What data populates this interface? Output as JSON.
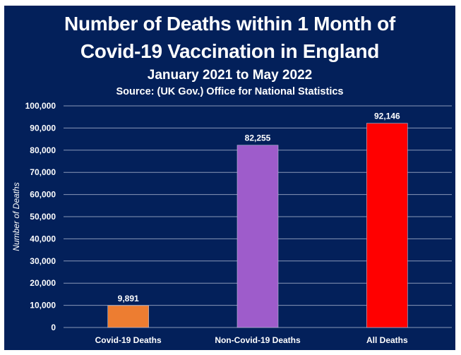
{
  "chart_data": {
    "type": "bar",
    "title": "Number of Deaths within 1 Month of",
    "title_line2": "Covid-19 Vaccination in England",
    "subtitle": "January 2021 to May 2022",
    "source": "Source: (UK Gov.) Office for National Statistics",
    "xlabel": "",
    "ylabel": "Number of Deaths",
    "ylim": [
      0,
      100000
    ],
    "yticks": [
      0,
      10000,
      20000,
      30000,
      40000,
      50000,
      60000,
      70000,
      80000,
      90000,
      100000
    ],
    "ytick_labels": [
      "0",
      "10,000",
      "20,000",
      "30,000",
      "40,000",
      "50,000",
      "60,000",
      "70,000",
      "80,000",
      "90,000",
      "100,000"
    ],
    "categories": [
      "Covid-19 Deaths",
      "Non-Covid-19 Deaths",
      "All Deaths"
    ],
    "values": [
      9891,
      82255,
      92146
    ],
    "data_labels": [
      "9,891",
      "82,255",
      "92,146"
    ],
    "colors": [
      "#ed7d31",
      "#9e5ccb",
      "#ff0000"
    ],
    "grid": true,
    "legend": "none"
  },
  "style": {
    "background": "#03205a",
    "gridline": "#8a97b8"
  }
}
